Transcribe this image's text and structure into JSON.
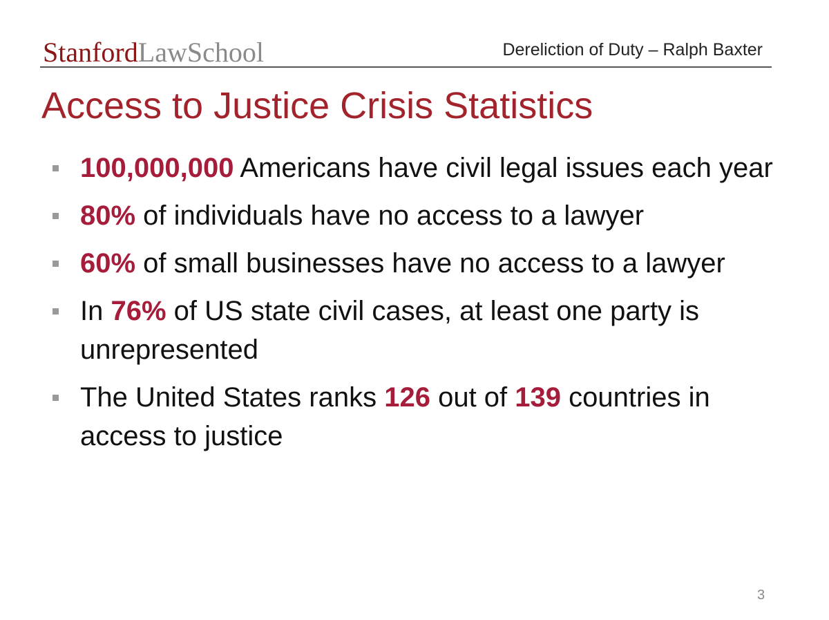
{
  "header": {
    "logo": {
      "primary": "Stanford",
      "secondary": "LawSchool"
    },
    "caption": "Dereliction of Duty – Ralph Baxter"
  },
  "slide": {
    "title": "Access to Justice Crisis Statistics",
    "bullets": [
      [
        {
          "text": "100,000,000",
          "highlight": true
        },
        {
          "text": " Americans have civil legal issues each year",
          "highlight": false
        }
      ],
      [
        {
          "text": "80%",
          "highlight": true
        },
        {
          "text": " of individuals have no access to a lawyer",
          "highlight": false
        }
      ],
      [
        {
          "text": "60%",
          "highlight": true
        },
        {
          "text": " of small businesses have no access to a lawyer",
          "highlight": false
        }
      ],
      [
        {
          "text": "In ",
          "highlight": false
        },
        {
          "text": "76%",
          "highlight": true
        },
        {
          "text": " of US state civil cases, at least one party is unrepresented",
          "highlight": false
        }
      ],
      [
        {
          "text": "The United States ranks ",
          "highlight": false
        },
        {
          "text": "126",
          "highlight": true
        },
        {
          "text": " out of ",
          "highlight": false
        },
        {
          "text": "139",
          "highlight": true
        },
        {
          "text": " countries in access to justice",
          "highlight": false
        }
      ]
    ],
    "page_number": "3"
  }
}
